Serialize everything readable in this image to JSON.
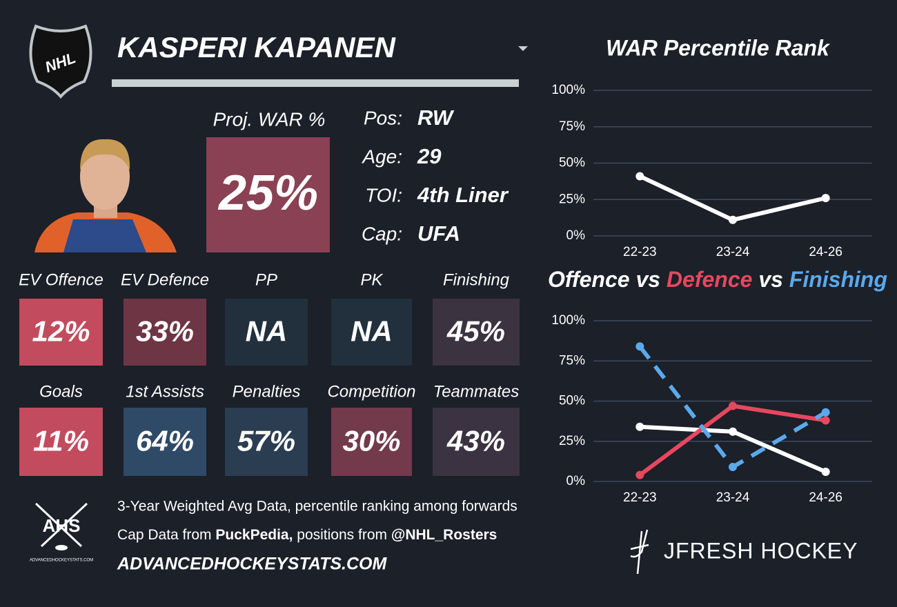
{
  "header": {
    "logo_text": "NHL",
    "player_name": "KASPERI KAPANEN"
  },
  "projection": {
    "label": "Proj. WAR %",
    "value": "25%",
    "color": "#8a4153"
  },
  "bio": [
    {
      "label": "Pos:",
      "value": "RW"
    },
    {
      "label": "Age:",
      "value": "29"
    },
    {
      "label": "TOI:",
      "value": "4th Liner"
    },
    {
      "label": "Cap:",
      "value": "UFA"
    }
  ],
  "tiles": [
    {
      "label": "EV Offence",
      "value": "12%",
      "color": "#c24b5e"
    },
    {
      "label": "EV Defence",
      "value": "33%",
      "color": "#6e3545"
    },
    {
      "label": "PP",
      "value": "NA",
      "color": "#22303d"
    },
    {
      "label": "PK",
      "value": "NA",
      "color": "#22303d"
    },
    {
      "label": "Finishing",
      "value": "45%",
      "color": "#3c3340"
    },
    {
      "label": "Goals",
      "value": "11%",
      "color": "#c24b5e"
    },
    {
      "label": "1st Assists",
      "value": "64%",
      "color": "#2f4a66"
    },
    {
      "label": "Penalties",
      "value": "57%",
      "color": "#2b3d51"
    },
    {
      "label": "Competition",
      "value": "30%",
      "color": "#733a4c"
    },
    {
      "label": "Teammates",
      "value": "43%",
      "color": "#3b3342"
    }
  ],
  "footer": {
    "ahs_logo": "AHS",
    "ahs_site_small": "ADVANCEDHOCKEYSTATS.COM",
    "note": "3-Year Weighted Avg Data, percentile ranking among forwards",
    "source_parts": [
      "Cap Data from ",
      "PuckPedia,",
      " positions from ",
      "@NHL_Rosters"
    ],
    "site": "ADVANCEDHOCKEYSTATS.COM",
    "brand": "JFRESH HOCKEY"
  },
  "chart_data": [
    {
      "type": "line",
      "title": "WAR Percentile Rank",
      "categories": [
        "22-23",
        "23-24",
        "24-26"
      ],
      "values": [
        41,
        11,
        26
      ],
      "color": "#ffffff",
      "ylim": [
        0,
        100
      ],
      "yticks": [
        {
          "value": 0,
          "label": "0%"
        },
        {
          "value": 25,
          "label": "25%"
        },
        {
          "value": 50,
          "label": "50%"
        },
        {
          "value": 75,
          "label": "75%"
        },
        {
          "value": 100,
          "label": "100%"
        }
      ],
      "grid": true
    },
    {
      "type": "line",
      "separator": "vs",
      "categories": [
        "22-23",
        "23-24",
        "24-26"
      ],
      "series": [
        {
          "name": "Offence",
          "color": "#ffffff",
          "dashed": false,
          "values": [
            34,
            31,
            6
          ]
        },
        {
          "name": "Defence",
          "color": "#e8475f",
          "dashed": false,
          "values": [
            4,
            47,
            38
          ]
        },
        {
          "name": "Finishing",
          "color": "#5aa9ec",
          "dashed": true,
          "values": [
            84,
            9,
            43
          ]
        }
      ],
      "ylim": [
        0,
        100
      ],
      "yticks": [
        {
          "value": 0,
          "label": "0%"
        },
        {
          "value": 25,
          "label": "25%"
        },
        {
          "value": 50,
          "label": "50%"
        },
        {
          "value": 75,
          "label": "75%"
        },
        {
          "value": 100,
          "label": "100%"
        }
      ],
      "grid": true
    }
  ]
}
